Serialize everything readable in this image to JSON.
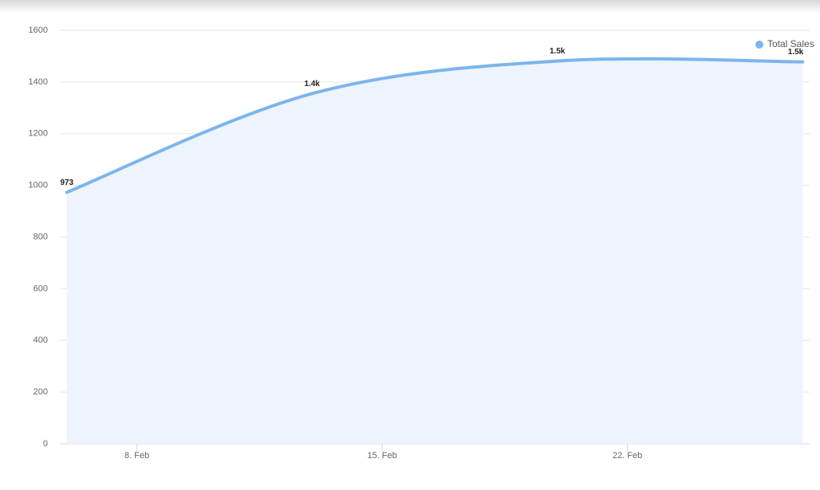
{
  "chart_data": {
    "type": "areaspline",
    "x": [
      6,
      13,
      20,
      27
    ],
    "xlim": [
      5.8,
      27.2
    ],
    "xticks": [
      {
        "value": 8,
        "label": "8. Feb"
      },
      {
        "value": 15,
        "label": "15. Feb"
      },
      {
        "value": 22,
        "label": "22. Feb"
      }
    ],
    "ylim": [
      0,
      1600
    ],
    "yticks": [
      0,
      200,
      400,
      600,
      800,
      1000,
      1200,
      1400,
      1600
    ],
    "grid": true,
    "legend": "top-right",
    "series": [
      {
        "name": "Total Sales",
        "color": "#7cb5ec",
        "fill": "#eef4fc",
        "values": [
          973,
          1355,
          1481,
          1478
        ],
        "value_labels": [
          "973",
          "1.4k",
          "1.5k",
          "1.5k"
        ]
      }
    ]
  }
}
